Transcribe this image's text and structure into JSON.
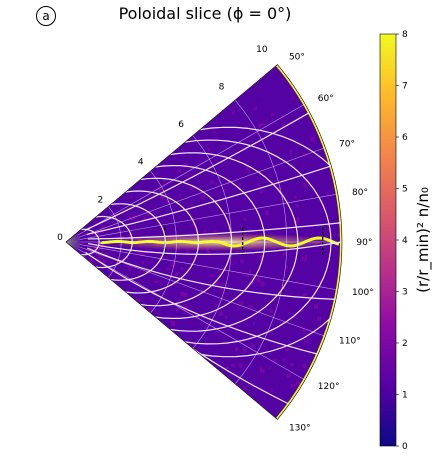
{
  "panel_label": "a",
  "title": "Poloidal slice (ϕ = 0°)",
  "chart_data": {
    "type": "heatmap",
    "projection": "polar-wedge",
    "radial_range": [
      0,
      10
    ],
    "radial_ticks": [
      "0",
      "2",
      "4",
      "6",
      "8",
      "10"
    ],
    "angle_range_deg": [
      50,
      130
    ],
    "angle_ticks": [
      "50°",
      "60°",
      "70°",
      "80°",
      "90°",
      "100°",
      "110°",
      "120°",
      "130°"
    ],
    "grid": true,
    "colorbar": {
      "label": "(r/r_min)² n/n₀",
      "range": [
        0,
        8
      ],
      "ticks": [
        "0",
        "1",
        "2",
        "3",
        "4",
        "5",
        "6",
        "7",
        "8"
      ],
      "colormap": [
        "#0d0887",
        "#5402a3",
        "#8b0aa5",
        "#b93289",
        "#db5c68",
        "#f48849",
        "#febc2a",
        "#f0f921"
      ]
    },
    "background_level": 1.2,
    "equatorial_sheet_level": 8,
    "overlay": "white magnetic field streamlines"
  }
}
